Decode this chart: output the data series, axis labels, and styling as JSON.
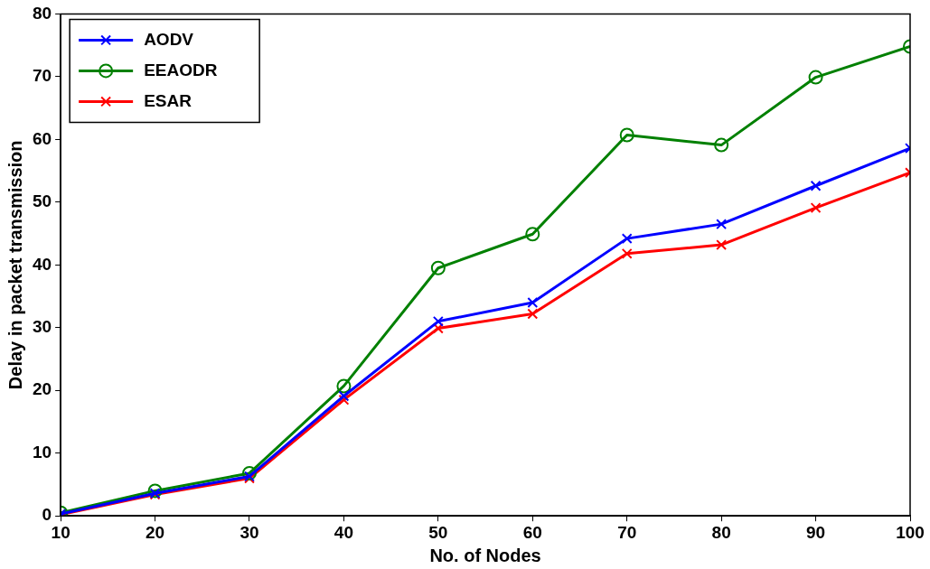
{
  "chart_data": {
    "type": "line",
    "xlabel": "No. of Nodes",
    "ylabel": "Delay in packet transmission",
    "x": [
      10,
      20,
      30,
      40,
      50,
      60,
      70,
      80,
      90,
      100
    ],
    "xlim": [
      10,
      100
    ],
    "xticks": [
      10,
      20,
      30,
      40,
      50,
      60,
      70,
      80,
      90,
      100
    ],
    "ylim": [
      0,
      80
    ],
    "yticks": [
      0,
      10,
      20,
      30,
      40,
      50,
      60,
      70,
      80
    ],
    "grid": false,
    "legend": "top left",
    "line_style": "solid",
    "series": [
      {
        "name": "AODV",
        "color": "#0000ff",
        "marker": "cross",
        "values": [
          0.3,
          3.6,
          6.3,
          19.1,
          31,
          34,
          44.2,
          46.5,
          52.6,
          58.6
        ]
      },
      {
        "name": "EEAODR",
        "color": "#008000",
        "marker": "circle",
        "values": [
          0.5,
          4,
          6.8,
          20.7,
          39.5,
          44.9,
          60.7,
          59.1,
          69.9,
          74.8
        ]
      },
      {
        "name": "ESAR",
        "color": "#ff0000",
        "marker": "cross",
        "values": [
          0.2,
          3.4,
          6,
          18.5,
          29.9,
          32.2,
          41.8,
          43.2,
          49.1,
          54.7
        ]
      }
    ]
  }
}
